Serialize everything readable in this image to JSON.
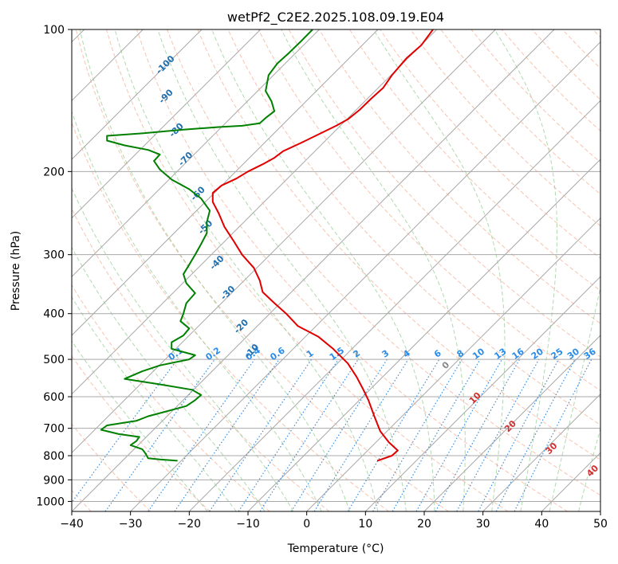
{
  "chart_data": {
    "type": "line",
    "subtype": "skew-t log-p diagram",
    "title": "wetPf2_C2E2.2025.108.09.19.E04",
    "xlabel": "Temperature (°C)",
    "ylabel": "Pressure (hPa)",
    "xlim": [
      -40,
      50
    ],
    "ylim": [
      1050,
      100
    ],
    "y_scale": "log",
    "x_ticks": [
      -40,
      -30,
      -20,
      -10,
      0,
      10,
      20,
      30,
      40,
      50
    ],
    "y_ticks": [
      100,
      200,
      300,
      400,
      500,
      600,
      700,
      800,
      900,
      1000
    ],
    "grid": true,
    "series": [
      {
        "role": "temperature",
        "color": "#e00000",
        "points": [
          [
            12.0,
            820
          ],
          [
            14.5,
            800
          ],
          [
            15.5,
            780
          ],
          [
            14.0,
            750
          ],
          [
            12.5,
            710
          ],
          [
            11.5,
            660
          ],
          [
            10.5,
            610
          ],
          [
            9.5,
            575
          ],
          [
            8.5,
            545
          ],
          [
            7.0,
            510
          ],
          [
            4.5,
            475
          ],
          [
            2.0,
            448
          ],
          [
            -1.5,
            425
          ],
          [
            -3.5,
            400
          ],
          [
            -5.5,
            380
          ],
          [
            -7.5,
            360
          ],
          [
            -8.0,
            340
          ],
          [
            -9.0,
            320
          ],
          [
            -11.0,
            300
          ],
          [
            -12.5,
            280
          ],
          [
            -14.0,
            262
          ],
          [
            -15.0,
            245
          ],
          [
            -16.0,
            232
          ],
          [
            -16.0,
            222
          ],
          [
            -14.5,
            214
          ],
          [
            -12.0,
            207
          ],
          [
            -10.0,
            200
          ],
          [
            -7.5,
            193
          ],
          [
            -5.5,
            187
          ],
          [
            -4.0,
            181
          ],
          [
            -1.0,
            174
          ],
          [
            1.5,
            168
          ],
          [
            5.0,
            160
          ],
          [
            7.0,
            155
          ],
          [
            9.0,
            148
          ],
          [
            11.0,
            140
          ],
          [
            13.0,
            133
          ],
          [
            14.5,
            125
          ],
          [
            17.0,
            115
          ],
          [
            19.5,
            108
          ],
          [
            21.5,
            100
          ]
        ]
      },
      {
        "role": "dewpoint",
        "color": "#008000",
        "points": [
          [
            -22,
            820
          ],
          [
            -25,
            815
          ],
          [
            -27,
            810
          ],
          [
            -27.5,
            790
          ],
          [
            -28,
            775
          ],
          [
            -30,
            760
          ],
          [
            -29,
            745
          ],
          [
            -28.5,
            730
          ],
          [
            -32,
            720
          ],
          [
            -35,
            705
          ],
          [
            -34,
            690
          ],
          [
            -29,
            675
          ],
          [
            -27,
            660
          ],
          [
            -24,
            645
          ],
          [
            -20.5,
            628
          ],
          [
            -19,
            610
          ],
          [
            -18,
            595
          ],
          [
            -19.5,
            580
          ],
          [
            -25,
            565
          ],
          [
            -31,
            550
          ],
          [
            -28,
            530
          ],
          [
            -25,
            515
          ],
          [
            -20,
            500
          ],
          [
            -19,
            490
          ],
          [
            -23,
            475
          ],
          [
            -23,
            460
          ],
          [
            -21,
            445
          ],
          [
            -20,
            430
          ],
          [
            -21.5,
            415
          ],
          [
            -21,
            400
          ],
          [
            -20.5,
            380
          ],
          [
            -19,
            362
          ],
          [
            -20.5,
            345
          ],
          [
            -21,
            330
          ],
          [
            -20,
            315
          ],
          [
            -19,
            300
          ],
          [
            -18,
            285
          ],
          [
            -17,
            270
          ],
          [
            -17,
            256
          ],
          [
            -16.5,
            242
          ],
          [
            -18,
            228
          ],
          [
            -20,
            218
          ],
          [
            -23,
            208
          ],
          [
            -25,
            198
          ],
          [
            -26,
            190
          ],
          [
            -25,
            184
          ],
          [
            -27,
            180
          ],
          [
            -31,
            176
          ],
          [
            -34,
            172
          ],
          [
            -34,
            168
          ],
          [
            -28,
            166
          ],
          [
            -21,
            163
          ],
          [
            -15,
            161
          ],
          [
            -11,
            160
          ],
          [
            -8,
            158
          ],
          [
            -7,
            154
          ],
          [
            -5.5,
            149
          ],
          [
            -6,
            142
          ],
          [
            -7,
            135
          ],
          [
            -6.5,
            125
          ],
          [
            -5,
            118
          ],
          [
            -3,
            112
          ],
          [
            -1,
            106
          ],
          [
            1,
            100
          ]
        ]
      }
    ],
    "dry_adiabat_labels": [
      "-100",
      "-90",
      "-80",
      "-70",
      "-60",
      "-50",
      "-40",
      "-30",
      "-20",
      "-10",
      "0",
      "10",
      "20",
      "30",
      "40"
    ],
    "mixing_ratio_labels": [
      "0.1",
      "0.2",
      "0.4",
      "0.6",
      "1",
      "1.5",
      "2",
      "3",
      "4",
      "6",
      "8",
      "10",
      "13",
      "16",
      "20",
      "25",
      "30",
      "36"
    ],
    "colors": {
      "temperature": "#e00000",
      "dewpoint": "#008000",
      "dry_adiabat": "#f4a98f",
      "moist_adiabat": "#8fc98f",
      "mixing_ratio": "#3a8fe0",
      "isotherm": "#a8a8a8",
      "isobar": "#a8a8a8",
      "dry_label": "#2070b0",
      "mixing_label": "#2a8ce8",
      "moist_label": "#d03030"
    }
  }
}
